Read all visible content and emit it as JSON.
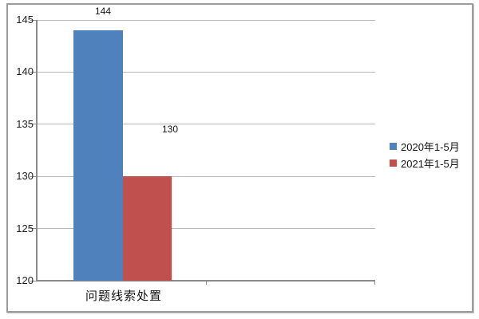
{
  "chart_data": {
    "type": "bar",
    "categories": [
      "问题线索处置"
    ],
    "series": [
      {
        "name": "2020年1-5月",
        "color": "#4F81BD",
        "values": [
          144
        ]
      },
      {
        "name": "2021年1-5月",
        "color": "#C0504D",
        "values": [
          130
        ]
      }
    ],
    "data_labels": [
      "144",
      "130"
    ],
    "title": "",
    "xlabel": "",
    "ylabel": "",
    "ylim": [
      120,
      145
    ],
    "yticks": [
      120,
      125,
      130,
      135,
      140,
      145
    ],
    "grid": true,
    "legend_position": "right-middle",
    "colors": {
      "series_2020": "#4F81BD",
      "series_2021": "#C0504D",
      "gridline": "#b8b8b8",
      "axis": "#8a8a8a",
      "text": "#141414",
      "frame_border": "#9c9c9c"
    }
  }
}
